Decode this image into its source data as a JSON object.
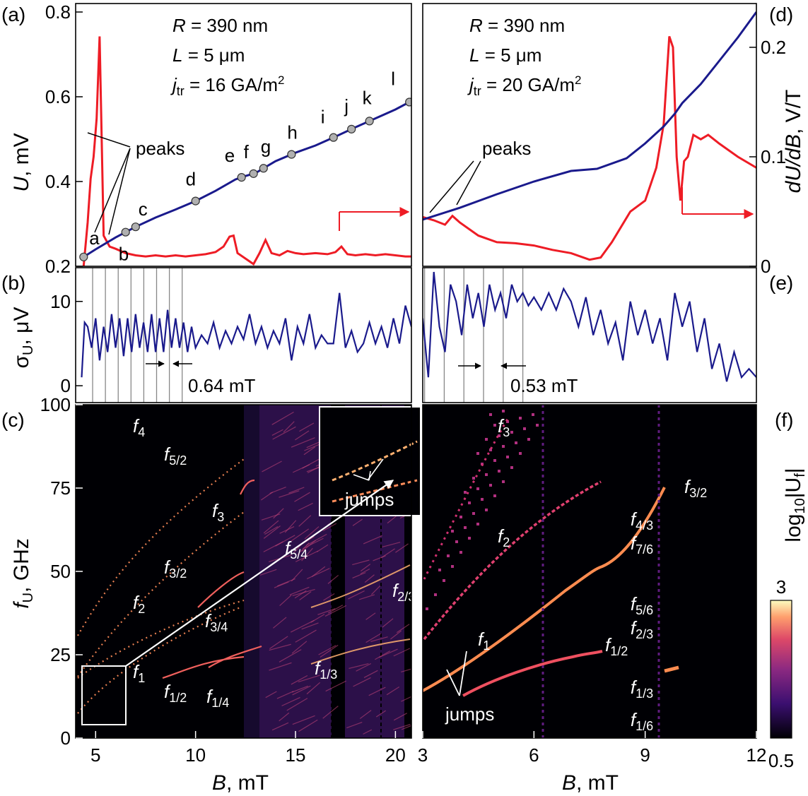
{
  "panels": {
    "a": {
      "letter": "(a)",
      "R": "R",
      "R_val": " = 390 nm",
      "L": "L",
      "L_val": " = 5 μm",
      "j": "j",
      "j_sub": "tr",
      "j_val": " = 16 GA/m",
      "j_exp": "2",
      "peaks": "peaks",
      "points": [
        "a",
        "b",
        "c",
        "d",
        "e",
        "f",
        "g",
        "h",
        "i",
        "j",
        "k",
        "l"
      ]
    },
    "b": {
      "letter": "(b)",
      "spacing": "0.64 mT"
    },
    "c": {
      "letter": "(c)",
      "jumps": "jumps"
    },
    "d": {
      "letter": "(d)",
      "R": "R",
      "R_val": " = 390 nm",
      "L": "L",
      "L_val": " = 5 μm",
      "j": "j",
      "j_sub": "tr",
      "j_val": " = 20 GA/m",
      "j_exp": "2",
      "peaks": "peaks"
    },
    "e": {
      "letter": "(e)",
      "spacing": "0.53 mT"
    },
    "f": {
      "letter": "(f)",
      "jumps": "jumps"
    }
  },
  "axes": {
    "U_label": "U",
    "U_unit": ", mV",
    "sigma_label": "σ",
    "sigma_sub": "U",
    "sigma_unit": ", μV",
    "f_label": "f",
    "f_sub": "U",
    "f_unit": ", GHz",
    "dUdB_label": "dU/dB",
    "dUdB_unit": ", V/T",
    "B_label": "B",
    "B_unit": ", mT",
    "cbar_label_pre": "log",
    "cbar_label_sub": "10",
    "cbar_label_post": "|U",
    "cbar_label_sub2": "f",
    "cbar_label_end": "|",
    "cbar_max": "3",
    "cbar_min": "0.5"
  },
  "chart_data": [
    {
      "panel": "a",
      "type": "line",
      "xlabel": "B, mT",
      "ylabel": "U, mV",
      "xlim": [
        4,
        20.8
      ],
      "ylim": [
        0.2,
        0.82
      ],
      "yticks": [
        "0.2",
        "0.4",
        "0.6",
        "0.8"
      ],
      "series": [
        {
          "name": "U",
          "color": "#1a1a8c",
          "x": [
            4.4,
            5,
            6,
            7,
            8,
            9,
            10,
            11,
            12,
            12.5,
            13,
            14,
            15,
            16,
            17,
            18,
            19,
            20,
            20.8
          ],
          "y": [
            0.222,
            0.24,
            0.268,
            0.293,
            0.315,
            0.334,
            0.354,
            0.378,
            0.405,
            0.413,
            0.42,
            0.448,
            0.468,
            0.485,
            0.506,
            0.528,
            0.549,
            0.57,
            0.59
          ]
        },
        {
          "name": "dU/dB",
          "color": "#e41a1c",
          "x": [
            4.4,
            4.6,
            4.75,
            4.9,
            5.05,
            5.2,
            5.4,
            5.7,
            6,
            6.5,
            7,
            7.5,
            8,
            8.5,
            9,
            9.5,
            10,
            10.5,
            11,
            11.4,
            11.7,
            11.9,
            12.1,
            12.5,
            12.9,
            13.2,
            13.5,
            13.8,
            14.2,
            14.6,
            15,
            15.4,
            16,
            16.6,
            17,
            17.3,
            17.6,
            18,
            18.5,
            19,
            19.5,
            20,
            20.5,
            20.8
          ],
          "y": [
            0.0,
            0.04,
            0.08,
            0.1,
            0.135,
            0.21,
            0.028,
            0.018,
            0.016,
            0.012,
            0.01,
            0.009,
            0.01,
            0.009,
            0.01,
            0.009,
            0.01,
            0.011,
            0.013,
            0.018,
            0.027,
            0.028,
            0.012,
            0.007,
            0.002,
            0.012,
            0.024,
            0.012,
            0.01,
            0.014,
            0.012,
            0.011,
            0.012,
            0.011,
            0.013,
            0.018,
            0.011,
            0.01,
            0.011,
            0.01,
            0.011,
            0.01,
            0.009,
            0.009
          ]
        }
      ],
      "annotations": [
        "R = 390 nm",
        "L = 5 μm",
        "j_tr = 16 GA/m^2",
        "peaks"
      ]
    },
    {
      "panel": "d",
      "type": "line",
      "xlabel": "B, mT",
      "ylabel": "dU/dB, V/T",
      "xlim": [
        3,
        12
      ],
      "y2lim": [
        0,
        0.24
      ],
      "y2ticks": [
        "0",
        "0.1",
        "0.2"
      ],
      "series": [
        {
          "name": "U",
          "color": "#1a1a8c",
          "x": [
            3,
            4,
            5,
            6,
            7,
            7.7,
            8.5,
            9,
            9.5,
            9.8,
            10,
            10.5,
            11,
            11.5,
            12
          ],
          "y": [
            0.31,
            0.338,
            0.37,
            0.4,
            0.425,
            0.43,
            0.455,
            0.49,
            0.53,
            0.56,
            0.585,
            0.63,
            0.685,
            0.74,
            0.8
          ]
        },
        {
          "name": "dU/dB",
          "color": "#e41a1c",
          "x": [
            3,
            3.3,
            3.6,
            3.8,
            4,
            4.5,
            5,
            5.5,
            6,
            6.5,
            7,
            7.5,
            7.8,
            8.1,
            8.6,
            9,
            9.3,
            9.5,
            9.65,
            9.75,
            9.85,
            9.95,
            10.05,
            10.15,
            10.3,
            10.5,
            10.7,
            11,
            11.5,
            12
          ],
          "y": [
            0.045,
            0.042,
            0.038,
            0.046,
            0.04,
            0.028,
            0.022,
            0.021,
            0.019,
            0.015,
            0.012,
            0.006,
            0.008,
            0.022,
            0.05,
            0.06,
            0.09,
            0.13,
            0.21,
            0.2,
            0.1,
            0.06,
            0.096,
            0.1,
            0.12,
            0.116,
            0.12,
            0.112,
            0.1,
            0.09
          ]
        }
      ],
      "annotations": [
        "R = 390 nm",
        "L = 5 μm",
        "j_tr = 20 GA/m^2",
        "peaks"
      ]
    },
    {
      "panel": "b",
      "type": "line",
      "xlabel": "B, mT",
      "ylabel": "σU, μV",
      "ylim": [
        -2,
        14
      ],
      "yticks": [
        "0",
        "10"
      ],
      "series": [
        {
          "name": "σU",
          "color": "#1a1a8c",
          "x": [
            4.3,
            4.45,
            4.6,
            4.8,
            5.0,
            5.2,
            5.4,
            5.6,
            5.8,
            6.0,
            6.2,
            6.4,
            6.6,
            6.8,
            7.0,
            7.2,
            7.4,
            7.6,
            7.8,
            8.0,
            8.2,
            8.4,
            8.6,
            8.8,
            9.0,
            9.2,
            9.4,
            9.6,
            9.8,
            10.0,
            10.3,
            10.6,
            10.9,
            11.2,
            11.5,
            11.8,
            12.1,
            12.4,
            12.7,
            13.0,
            13.3,
            13.6,
            13.9,
            14.2,
            14.5,
            14.8,
            15.1,
            15.4,
            15.7,
            16.0,
            16.3,
            16.6,
            16.9,
            17.2,
            17.5,
            17.8,
            18.1,
            18.4,
            18.7,
            19.0,
            19.3,
            19.6,
            19.9,
            20.2,
            20.5,
            20.8
          ],
          "y": [
            1,
            7.5,
            7,
            4.5,
            8,
            3,
            7,
            4,
            8.5,
            4.5,
            8,
            3.5,
            8,
            4,
            8.5,
            4.5,
            7.5,
            4,
            8.5,
            4,
            8,
            4,
            9,
            4.5,
            8,
            4.5,
            7.5,
            4,
            7,
            4.5,
            6,
            5,
            7.5,
            4.5,
            6.5,
            5,
            7,
            5.5,
            8.5,
            5,
            7,
            4.5,
            6.5,
            5,
            8,
            3,
            7,
            5,
            8.5,
            4.5,
            6,
            5,
            5,
            11,
            4.5,
            6.5,
            4,
            5,
            7.5,
            5,
            7,
            4.5,
            8,
            5,
            9.5,
            7
          ]
        }
      ],
      "vlines_mT": [
        4.85,
        5.49,
        6.13,
        6.77,
        7.41,
        8.05,
        8.69,
        9.33
      ]
    },
    {
      "panel": "e",
      "type": "line",
      "xlabel": "B, mT",
      "ylabel": "σU, μV",
      "ylim": [
        -2,
        14
      ],
      "series": [
        {
          "name": "σU",
          "color": "#1a1a8c",
          "x": [
            3,
            3.15,
            3.3,
            3.45,
            3.6,
            3.75,
            3.9,
            4.05,
            4.2,
            4.35,
            4.5,
            4.65,
            4.8,
            4.95,
            5.1,
            5.25,
            5.4,
            5.55,
            5.7,
            5.85,
            6.0,
            6.2,
            6.4,
            6.6,
            6.8,
            7.0,
            7.2,
            7.4,
            7.6,
            7.8,
            8.0,
            8.2,
            8.4,
            8.6,
            8.8,
            9.0,
            9.2,
            9.4,
            9.6,
            9.8,
            10.0,
            10.2,
            10.4,
            10.6,
            10.8,
            11.0,
            11.2,
            11.4,
            11.6,
            11.8,
            12.0
          ],
          "y": [
            8,
            1,
            13.5,
            7,
            4,
            12,
            10,
            6,
            12,
            8,
            11,
            7,
            12,
            9,
            11,
            8,
            12,
            10,
            11,
            9.5,
            10.5,
            9,
            11,
            9,
            11.5,
            10,
            7,
            10.5,
            6,
            9,
            5,
            7.5,
            3,
            10,
            6,
            9,
            5,
            8,
            3,
            11,
            7,
            10,
            4,
            8,
            2,
            5,
            0.5,
            4,
            1,
            2,
            1
          ]
        }
      ],
      "vlines_mT": [
        3.05,
        3.58,
        4.11,
        4.64,
        5.17,
        5.7
      ]
    },
    {
      "panel": "c",
      "type": "heatmap",
      "xlabel": "B, mT",
      "ylabel": "fU, GHz",
      "xlim": [
        4,
        20.8
      ],
      "ylim": [
        0,
        100
      ],
      "yticks": [
        "0",
        "25",
        "50",
        "75",
        "100"
      ],
      "xticks": [
        "5",
        "10",
        "15",
        "20"
      ],
      "mode_labels": [
        "f4",
        "f5/2",
        "f3",
        "f5/4",
        "f3/2",
        "f2",
        "f3/4",
        "f2/3",
        "f1",
        "f1/2",
        "f1/4",
        "f1/3"
      ]
    },
    {
      "panel": "f",
      "type": "heatmap",
      "xlabel": "B, mT",
      "xlim": [
        3,
        12
      ],
      "ylim": [
        0,
        100
      ],
      "xticks": [
        "3",
        "6",
        "9",
        "12"
      ],
      "mode_labels": [
        "f3",
        "f2",
        "f3/2",
        "f4/3",
        "f7/6",
        "f5/6",
        "f2/3",
        "f1",
        "f1/2",
        "f1/3",
        "f1/6"
      ],
      "colorbar": {
        "label": "log10|Uf|",
        "min": 0.5,
        "max": 3
      }
    }
  ]
}
